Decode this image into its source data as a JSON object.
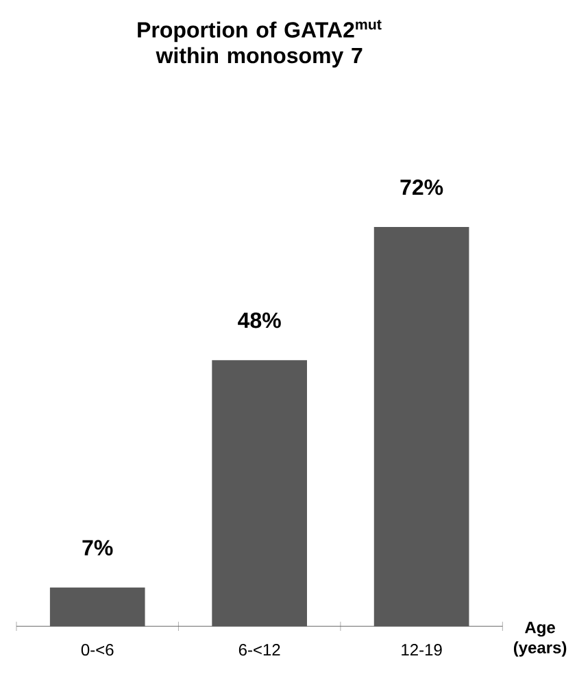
{
  "chart_data": {
    "type": "bar",
    "title": "Proportion of GATA2$^{mut}$ within monosomy 7",
    "categories": [
      "0-<6",
      "6-<12",
      "12-19"
    ],
    "values": [
      7,
      48,
      72
    ],
    "value_labels": [
      "7%",
      "48%",
      "72%"
    ],
    "color": "#595959",
    "xlabel": "Age (years)",
    "tick_labels": "x"
  }
}
